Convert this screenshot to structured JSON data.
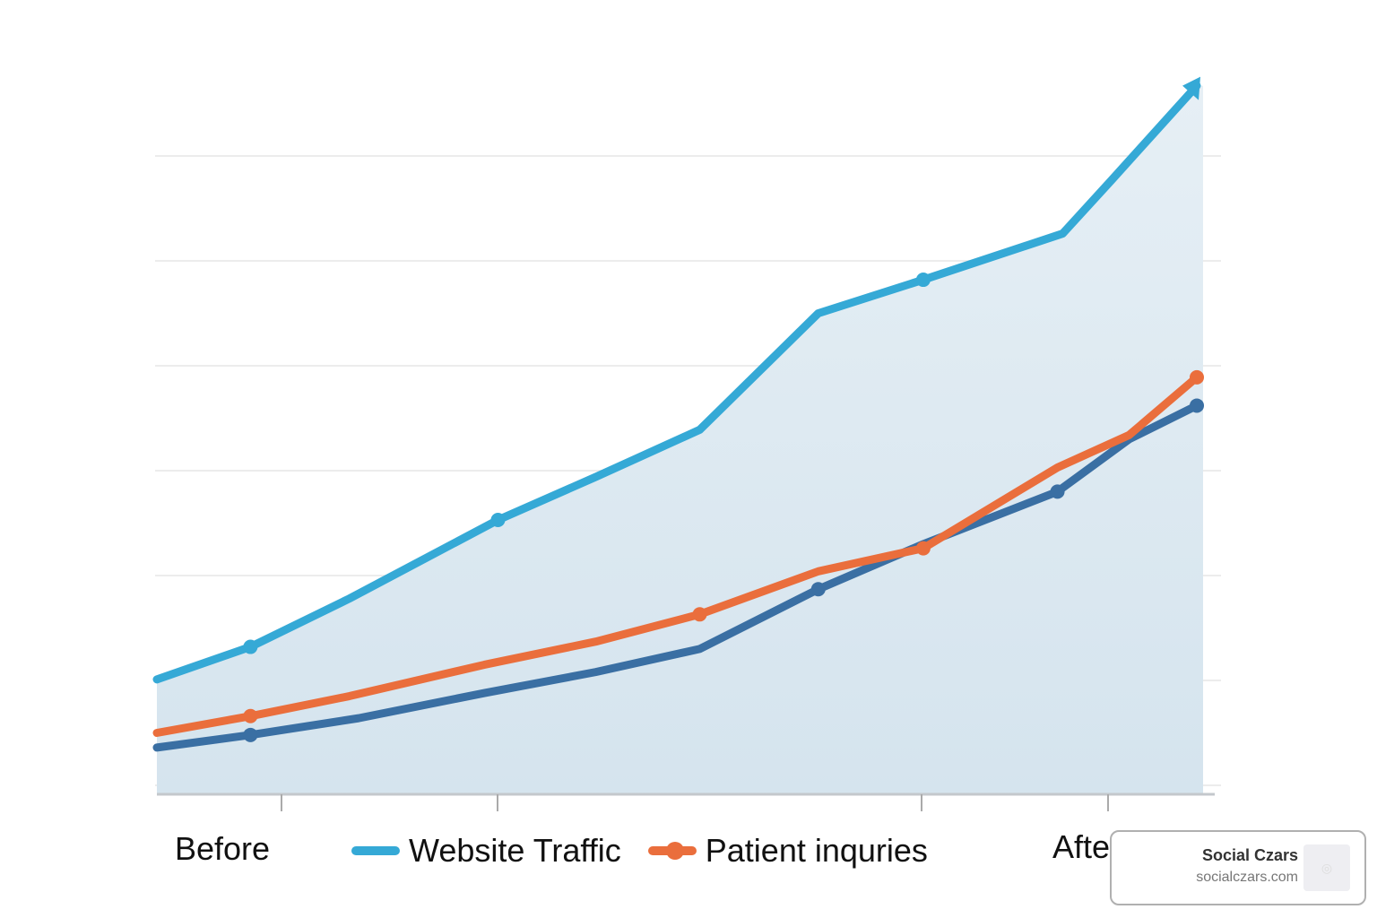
{
  "chart_data": {
    "type": "line",
    "title": "",
    "xlabel": "",
    "ylabel": "",
    "x_tick_labels": [
      "Before",
      "After"
    ],
    "grid": true,
    "ylim": [
      0,
      6.7
    ],
    "xlim": [
      0,
      10
    ],
    "legend_position": "bottom",
    "series": [
      {
        "name": "Website Traffic",
        "color": "#35a9d6",
        "area_fill": true,
        "end_arrow": true,
        "x": [
          0,
          0.9,
          1.85,
          3.28,
          4.22,
          5.22,
          6.36,
          7.37,
          8.71,
          9.18,
          10.0
        ],
        "values": [
          1.01,
          1.32,
          1.78,
          2.53,
          2.94,
          3.39,
          4.5,
          4.82,
          5.26,
          5.77,
          6.67
        ],
        "markers": [
          1,
          3,
          7
        ]
      },
      {
        "name": "Patient inquries",
        "color": "#ea6e3c",
        "x": [
          0,
          0.9,
          1.85,
          3.15,
          4.22,
          5.22,
          6.36,
          7.37,
          8.66,
          9.35,
          10.0
        ],
        "values": [
          0.5,
          0.66,
          0.85,
          1.15,
          1.37,
          1.63,
          2.04,
          2.26,
          3.03,
          3.34,
          3.89
        ],
        "markers": [
          1,
          5,
          7,
          10
        ]
      },
      {
        "color": "#3a6fa3",
        "x": [
          0,
          0.9,
          1.94,
          3.15,
          4.22,
          5.22,
          6.36,
          7.37,
          8.66,
          9.35,
          10.0
        ],
        "values": [
          0.36,
          0.48,
          0.64,
          0.88,
          1.08,
          1.3,
          1.87,
          2.3,
          2.8,
          3.3,
          3.62
        ],
        "markers": [
          1,
          6,
          8,
          10
        ]
      }
    ]
  },
  "legend": {
    "items": [
      {
        "label": "Website Traffic",
        "color": "#35a9d6"
      },
      {
        "label": "Patient inquries",
        "color": "#ea6e3c"
      }
    ]
  },
  "watermark": {
    "title": "Social Czars",
    "url": "socialczars.com"
  }
}
